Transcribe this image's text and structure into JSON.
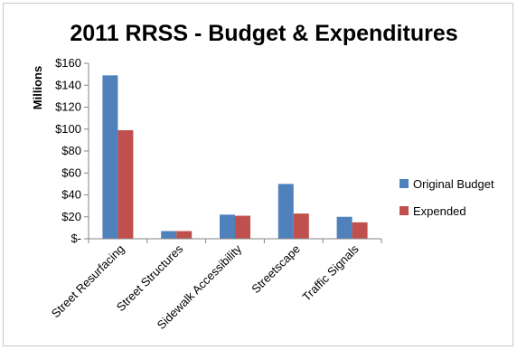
{
  "chart_data": {
    "type": "bar",
    "title": "2011 RRSS - Budget & Expenditures",
    "ylabel": "Millions",
    "xlabel": "",
    "categories": [
      "Street Resurfacing",
      "Street Structures",
      "Sidewalk Accessibility",
      "Streetscape",
      "Traffic Signals"
    ],
    "series": [
      {
        "name": "Original Budget",
        "color": "#4F81BD",
        "values": [
          149,
          7,
          22,
          50,
          20
        ]
      },
      {
        "name": "Expended",
        "color": "#C0504D",
        "values": [
          99,
          7,
          21,
          23,
          15
        ]
      }
    ],
    "ylim": [
      0,
      160
    ],
    "yticks": [
      0,
      20,
      40,
      60,
      80,
      100,
      120,
      140,
      160
    ],
    "ytick_labels": [
      "$-",
      "$20",
      "$40",
      "$60",
      "$80",
      "$100",
      "$120",
      "$140",
      "$160"
    ],
    "grid": false,
    "legend_position": "right"
  }
}
